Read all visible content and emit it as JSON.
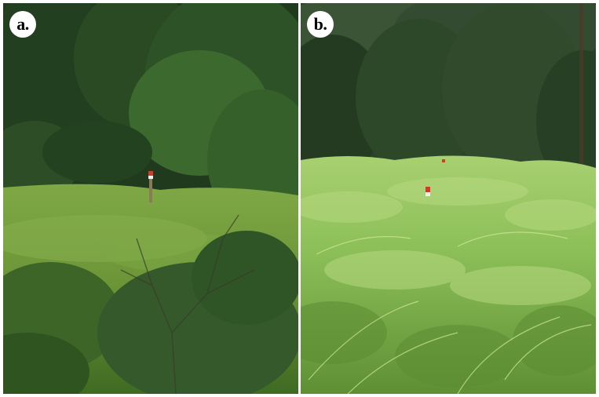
{
  "panels": [
    {
      "label": "a."
    },
    {
      "label": "b."
    }
  ],
  "colors": {
    "background": "#ffffff",
    "badge_bg": "#ffffff",
    "badge_text": "#000000",
    "forest_dark": "#1f3a1c",
    "meadow_grass": "#6f9a3c",
    "fern_green": "#8fbf5a",
    "marker_red": "#d23a2a"
  }
}
